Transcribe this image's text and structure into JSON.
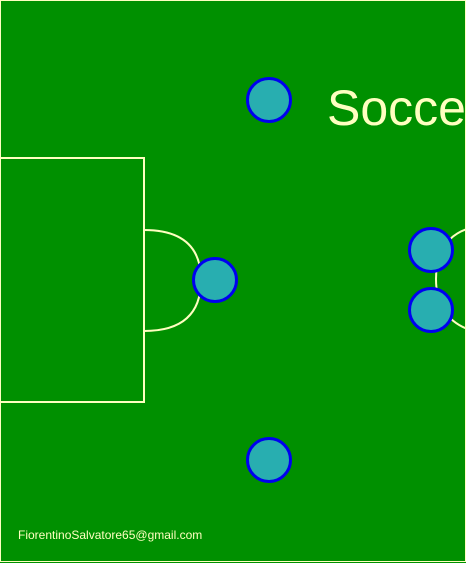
{
  "title": "Soccer",
  "credit": "FiorentinoSalvatore65@gmail.com",
  "colors": {
    "pitch": "#009000",
    "lines": "#FFFFC0",
    "player_fill": "#28AEB0",
    "player_border": "#0000F0"
  },
  "players": [
    {
      "id": 1
    },
    {
      "id": 2
    },
    {
      "id": 3
    },
    {
      "id": 4
    },
    {
      "id": 5
    }
  ]
}
